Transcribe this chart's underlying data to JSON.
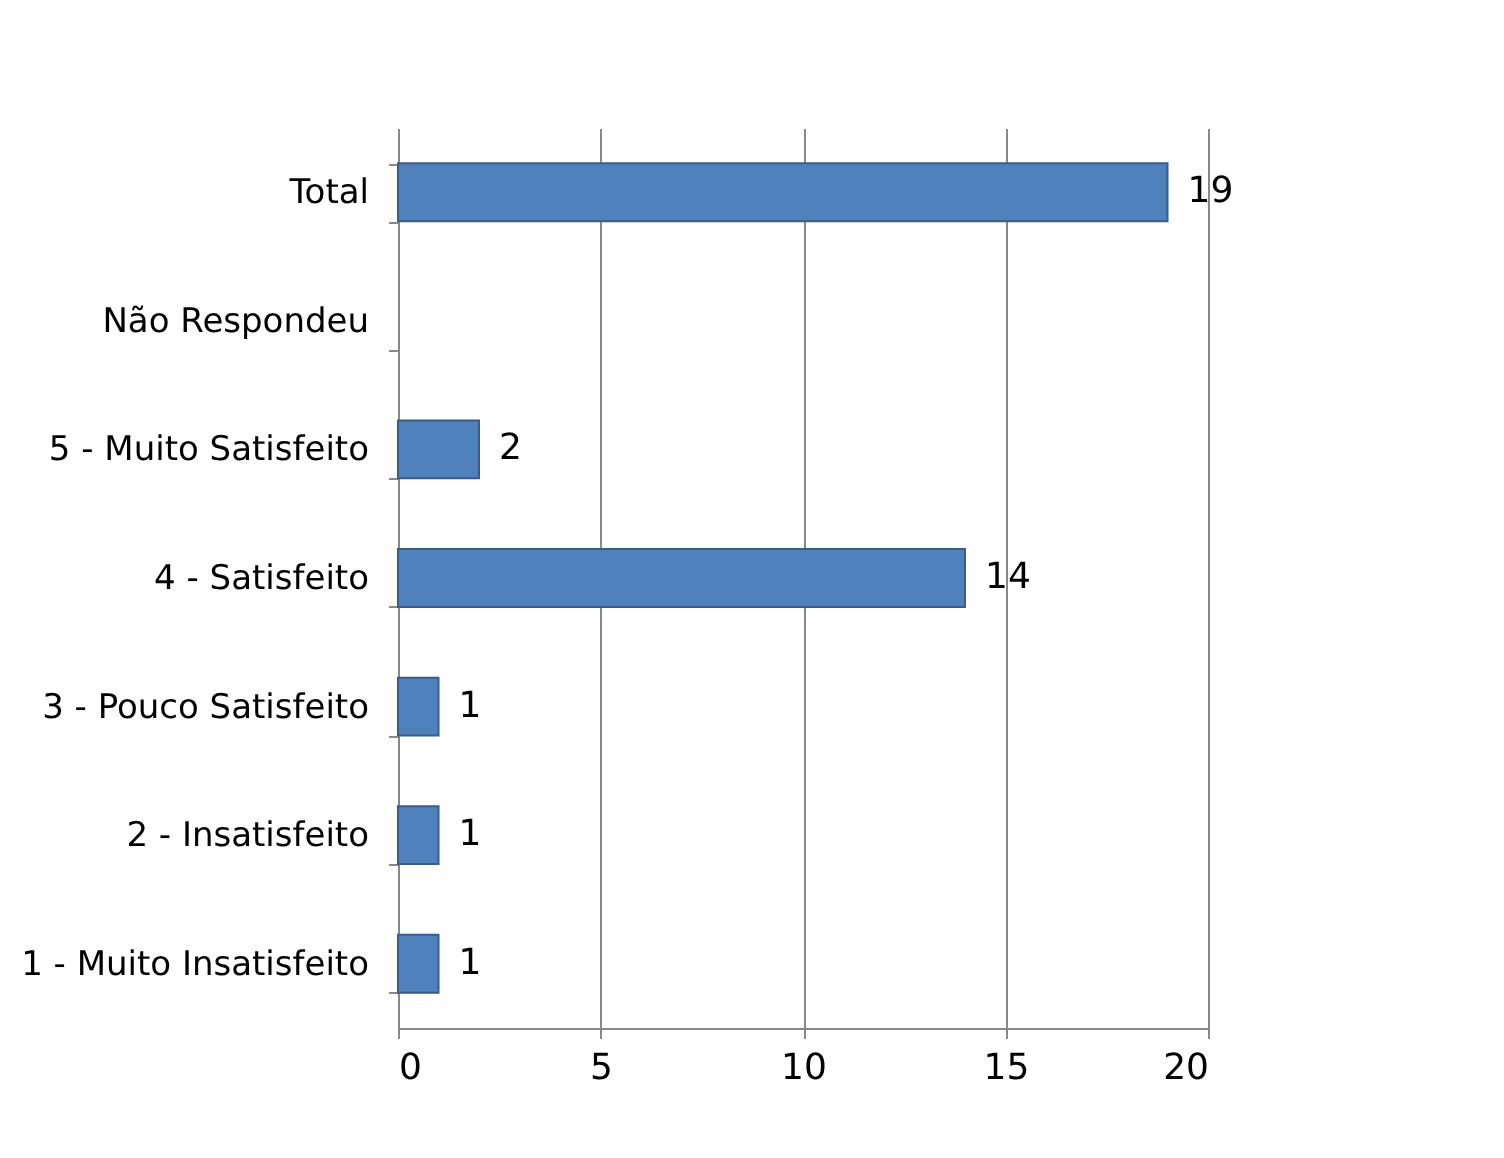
{
  "chart_data": {
    "type": "bar",
    "orientation": "horizontal",
    "categories": [
      "Total",
      "Não Respondeu",
      "5 - Muito Satisfeito",
      "4 - Satisfeito",
      "3 - Pouco Satisfeito",
      "2 - Insatisfeito",
      "1 - Muito Insatisfeito"
    ],
    "values": [
      19,
      null,
      2,
      14,
      1,
      1,
      1
    ],
    "color": "#4f81bd",
    "xlim": [
      0,
      20
    ],
    "xticks": [
      0,
      5,
      10,
      15,
      20
    ],
    "grid": "x",
    "data_labels": true
  }
}
